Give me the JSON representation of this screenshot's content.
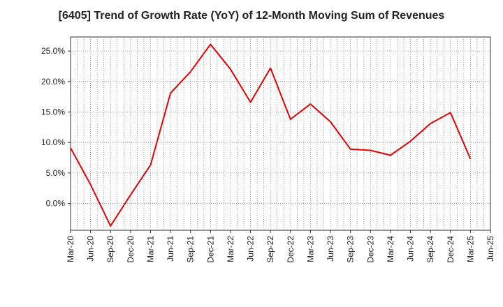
{
  "chart_data": {
    "type": "line",
    "title": "[6405]  Trend of Growth Rate (YoY) of 12-Month Moving Sum of Revenues",
    "xlabel": "",
    "ylabel": "",
    "x_ticks": [
      "Mar-20",
      "Jun-20",
      "Sep-20",
      "Dec-20",
      "Mar-21",
      "Jun-21",
      "Sep-21",
      "Dec-21",
      "Mar-22",
      "Jun-22",
      "Sep-22",
      "Dec-22",
      "Mar-23",
      "Jun-23",
      "Sep-23",
      "Dec-23",
      "Mar-24",
      "Jun-24",
      "Sep-24",
      "Dec-24",
      "Mar-25",
      "Jun-25"
    ],
    "y_ticks": [
      "0.0%",
      "5.0%",
      "10.0%",
      "15.0%",
      "20.0%",
      "25.0%"
    ],
    "y_tick_values": [
      0,
      5,
      10,
      15,
      20,
      25
    ],
    "ylim": [
      -4.4,
      27.3
    ],
    "grid": true,
    "line_color": "#e60000",
    "series": [
      {
        "x": [
          "Mar-20",
          "Jun-20",
          "Sep-20",
          "Dec-20",
          "Mar-21",
          "Jun-21",
          "Sep-21",
          "Dec-21",
          "Mar-22",
          "Jun-22",
          "Sep-22",
          "Dec-22",
          "Mar-23",
          "Jun-23",
          "Sep-23",
          "Dec-23",
          "Mar-24",
          "Jun-24",
          "Sep-24",
          "Dec-24",
          "Mar-25"
        ],
        "values": [
          9.1,
          3.1,
          -3.7,
          1.4,
          6.3,
          18.1,
          21.6,
          26.1,
          22.0,
          16.6,
          22.2,
          13.8,
          16.3,
          13.4,
          8.9,
          8.7,
          7.9,
          10.2,
          13.1,
          14.9,
          7.3
        ]
      }
    ]
  }
}
